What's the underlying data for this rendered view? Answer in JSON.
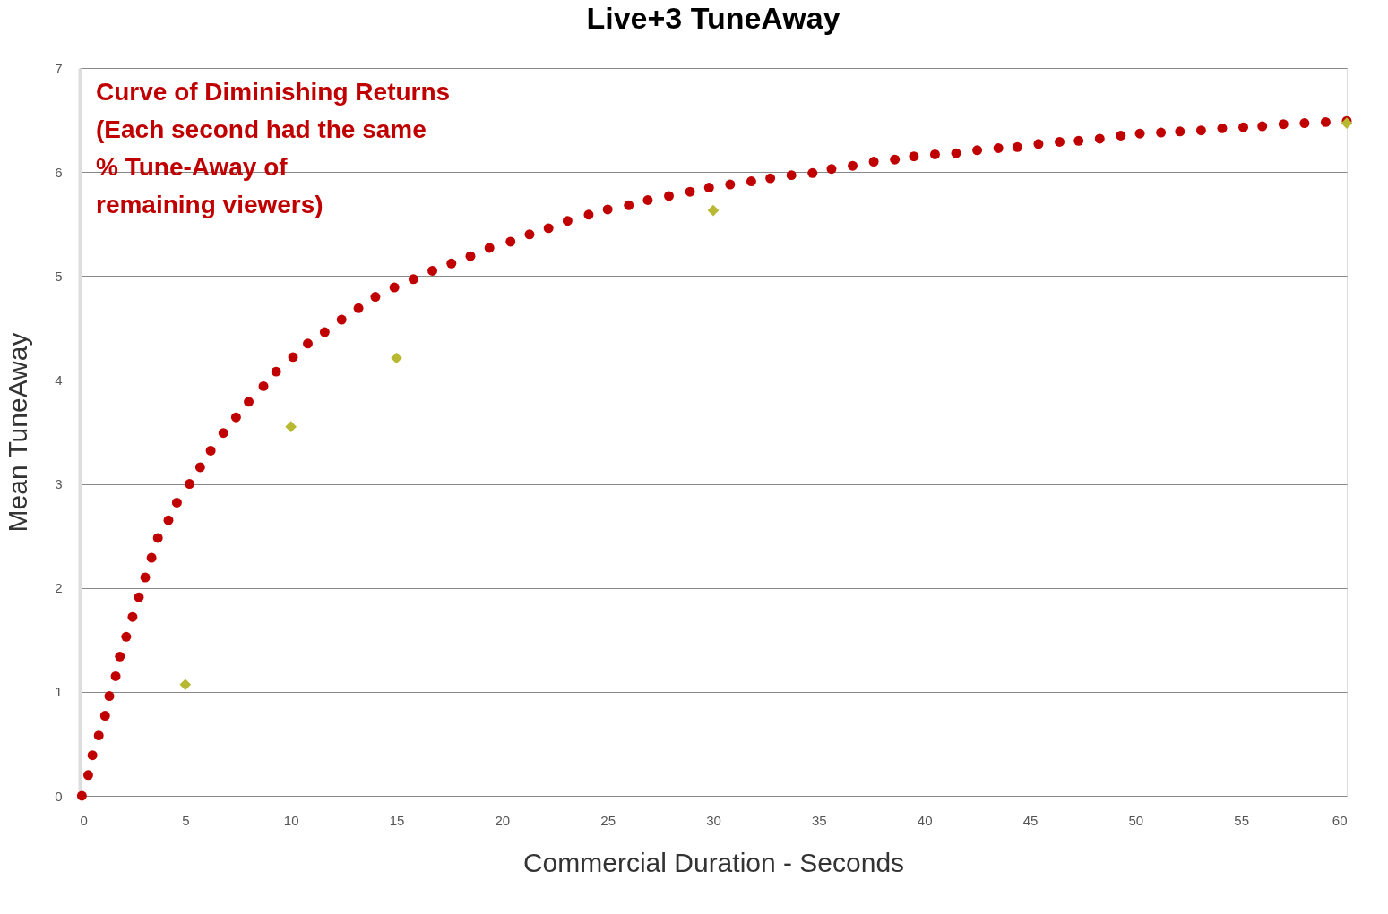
{
  "chart_data": {
    "type": "scatter",
    "title": "Live+3 TuneAway",
    "xlabel": "Commercial Duration - Seconds",
    "ylabel": "Mean TuneAway",
    "annotations": [
      "Curve of Diminishing Returns\n(Each second had the same\n% Tune-Away of\nremaining viewers)"
    ],
    "xlim": [
      0,
      60
    ],
    "xticks": [
      0,
      5,
      10,
      15,
      20,
      25,
      30,
      35,
      40,
      45,
      50,
      55,
      60
    ],
    "ylim": [
      0,
      7
    ],
    "yticks": [
      0,
      1,
      2,
      3,
      4,
      5,
      6,
      7
    ],
    "grid": "y",
    "series": [
      {
        "color": "#c00000",
        "marker": "circle",
        "x": [
          0.1,
          0.4,
          0.6,
          0.9,
          1.2,
          1.4,
          1.7,
          1.9,
          2.2,
          2.5,
          2.8,
          3.1,
          3.4,
          3.7,
          4.2,
          4.6,
          5.2,
          5.7,
          6.2,
          6.8,
          7.4,
          8.0,
          8.7,
          9.3,
          10.1,
          10.8,
          11.6,
          12.4,
          13.2,
          14.0,
          14.9,
          15.8,
          16.7,
          17.6,
          18.5,
          19.4,
          20.4,
          21.3,
          22.2,
          23.1,
          24.1,
          25.0,
          26.0,
          26.9,
          27.9,
          28.9,
          29.8,
          30.8,
          31.8,
          32.7,
          33.7,
          34.7,
          35.6,
          36.6,
          37.6,
          38.6,
          39.5,
          40.5,
          41.5,
          42.5,
          43.5,
          44.4,
          45.4,
          46.4,
          47.3,
          48.3,
          49.3,
          50.2,
          51.2,
          52.1,
          53.1,
          54.1,
          55.1,
          56.0,
          57.0,
          58.0,
          59.0,
          60.0
        ],
        "values": [
          0.0,
          0.2,
          0.39,
          0.58,
          0.77,
          0.96,
          1.15,
          1.34,
          1.53,
          1.72,
          1.91,
          2.1,
          2.29,
          2.48,
          2.65,
          2.82,
          3.0,
          3.16,
          3.32,
          3.49,
          3.64,
          3.79,
          3.94,
          4.08,
          4.22,
          4.35,
          4.46,
          4.58,
          4.69,
          4.8,
          4.89,
          4.97,
          5.05,
          5.12,
          5.19,
          5.27,
          5.33,
          5.4,
          5.46,
          5.53,
          5.59,
          5.64,
          5.68,
          5.73,
          5.77,
          5.81,
          5.85,
          5.88,
          5.91,
          5.94,
          5.97,
          5.99,
          6.03,
          6.06,
          6.1,
          6.12,
          6.15,
          6.17,
          6.18,
          6.21,
          6.23,
          6.24,
          6.27,
          6.29,
          6.3,
          6.32,
          6.35,
          6.37,
          6.38,
          6.39,
          6.4,
          6.42,
          6.43,
          6.44,
          6.46,
          6.47,
          6.48,
          6.49
        ]
      },
      {
        "color": "#b8b832",
        "marker": "diamond",
        "x": [
          5,
          10,
          15,
          30,
          60
        ],
        "values": [
          1.07,
          3.55,
          4.21,
          5.63,
          6.47
        ]
      }
    ]
  }
}
